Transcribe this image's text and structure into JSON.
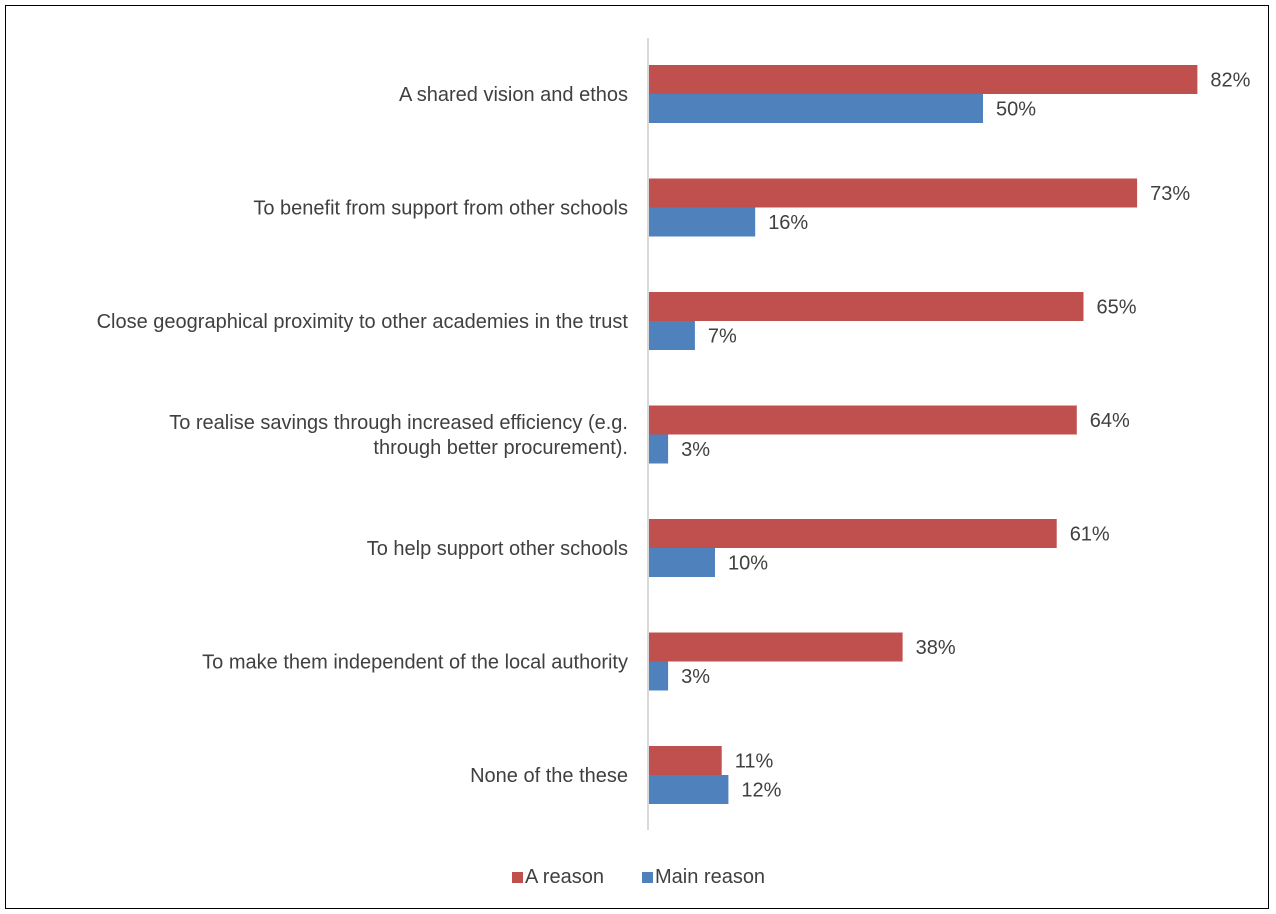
{
  "chart_data": {
    "type": "bar",
    "orientation": "horizontal",
    "categories": [
      [
        "A shared vision and ethos"
      ],
      [
        "To benefit from support from other schools"
      ],
      [
        "Close geographical proximity to other academies in the trust"
      ],
      [
        "To realise savings through increased efficiency (e.g.",
        "through better procurement)."
      ],
      [
        "To help support other schools"
      ],
      [
        "To make them independent of the local authority"
      ],
      [
        "None of the these"
      ]
    ],
    "series": [
      {
        "name": "A reason",
        "color": "#C0504D",
        "values": [
          82,
          73,
          65,
          64,
          61,
          38,
          11
        ],
        "labels": [
          "82%",
          "73%",
          "65%",
          "64%",
          "61%",
          "38%",
          "11%"
        ]
      },
      {
        "name": "Main reason",
        "color": "#4F81BD",
        "values": [
          50,
          16,
          7,
          3,
          10,
          3,
          12
        ],
        "labels": [
          "50%",
          "16%",
          "7%",
          "3%",
          "10%",
          "3%",
          "12%"
        ]
      }
    ],
    "xlim": [
      0,
      90
    ],
    "grid": false,
    "legend_position": "bottom"
  }
}
